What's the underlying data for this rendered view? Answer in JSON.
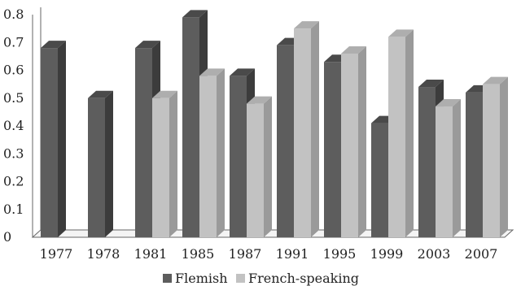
{
  "chart_data": {
    "type": "bar",
    "title": "",
    "xlabel": "",
    "ylabel": "",
    "categories": [
      "1977",
      "1978",
      "1981",
      "1985",
      "1987",
      "1991",
      "1995",
      "1999",
      "2003",
      "2007"
    ],
    "series": [
      {
        "name": "Flemish",
        "values": [
          0.68,
          0.5,
          0.68,
          0.79,
          0.58,
          0.69,
          0.63,
          0.41,
          0.54,
          0.52
        ]
      },
      {
        "name": "French-speaking",
        "values": [
          null,
          null,
          0.5,
          0.58,
          0.48,
          0.75,
          0.66,
          0.72,
          0.47,
          0.55
        ]
      }
    ],
    "y_ticks": [
      "0",
      "0.1",
      "0.2",
      "0.3",
      "0.4",
      "0.5",
      "0.6",
      "0.7",
      "0.8"
    ],
    "ylim": [
      0,
      0.8
    ],
    "grid": false,
    "legend_position": "bottom",
    "colors": {
      "flemish_front": "#5d5d5d",
      "flemish_side": "#3c3c3c",
      "flemish_top": "#4a4a4a",
      "french_front": "#c2c2c2",
      "french_side": "#9a9a9a",
      "french_top": "#aeaeae"
    }
  }
}
